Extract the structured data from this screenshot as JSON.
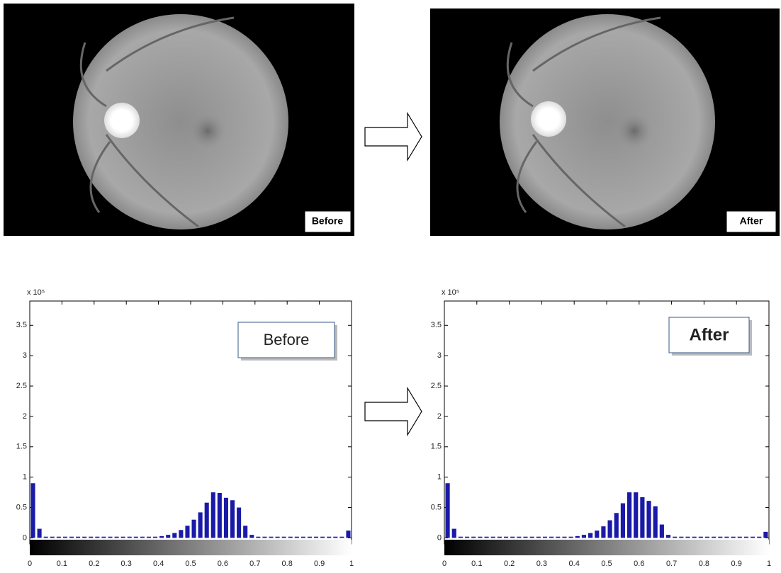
{
  "images": [
    {
      "label": "Before"
    },
    {
      "label": "After"
    }
  ],
  "chart_data": [
    {
      "type": "histogram",
      "annotation": "Before",
      "exponent_label": "x 10⁵",
      "color": "#1a1aa8",
      "bins": [
        0,
        0.02,
        0.04,
        0.06,
        0.08,
        0.1,
        0.12,
        0.14,
        0.16,
        0.18,
        0.2,
        0.22,
        0.24,
        0.26,
        0.28,
        0.3,
        0.32,
        0.34,
        0.36,
        0.38,
        0.4,
        0.42,
        0.44,
        0.46,
        0.48,
        0.5,
        0.52,
        0.54,
        0.56,
        0.58,
        0.6,
        0.62,
        0.64,
        0.66,
        0.68,
        0.7,
        0.72,
        0.74,
        0.76,
        0.78,
        0.8,
        0.82,
        0.84,
        0.86,
        0.88,
        0.9,
        0.92,
        0.94,
        0.96,
        0.98,
        1
      ],
      "values": [
        0.9,
        0.15,
        0.02,
        0.02,
        0.02,
        0.02,
        0.02,
        0.02,
        0.02,
        0.02,
        0.02,
        0.02,
        0.02,
        0.02,
        0.02,
        0.02,
        0.02,
        0.02,
        0.02,
        0.02,
        0.03,
        0.05,
        0.08,
        0.13,
        0.2,
        0.3,
        0.42,
        0.58,
        0.75,
        0.74,
        0.66,
        0.62,
        0.5,
        0.2,
        0.05,
        0.02,
        0.02,
        0.02,
        0.02,
        0.02,
        0.02,
        0.02,
        0.02,
        0.02,
        0.02,
        0.02,
        0.02,
        0.02,
        0.02,
        0.12
      ],
      "xlim": [
        0,
        1
      ],
      "xticks": [
        0,
        0.1,
        0.2,
        0.3,
        0.4,
        0.5,
        0.6,
        0.7,
        0.8,
        0.9,
        1
      ],
      "ylim": [
        -0.1,
        3.9
      ],
      "yticks": [
        0,
        0.5,
        1,
        1.5,
        2,
        2.5,
        3,
        3.5
      ]
    },
    {
      "type": "histogram",
      "annotation": "After",
      "exponent_label": "x 10⁵",
      "color": "#1a1aa8",
      "bins": [
        0,
        0.02,
        0.04,
        0.06,
        0.08,
        0.1,
        0.12,
        0.14,
        0.16,
        0.18,
        0.2,
        0.22,
        0.24,
        0.26,
        0.28,
        0.3,
        0.32,
        0.34,
        0.36,
        0.38,
        0.4,
        0.42,
        0.44,
        0.46,
        0.48,
        0.5,
        0.52,
        0.54,
        0.56,
        0.58,
        0.6,
        0.62,
        0.64,
        0.66,
        0.68,
        0.7,
        0.72,
        0.74,
        0.76,
        0.78,
        0.8,
        0.82,
        0.84,
        0.86,
        0.88,
        0.9,
        0.92,
        0.94,
        0.96,
        0.98,
        1
      ],
      "values": [
        0.9,
        0.15,
        0.02,
        0.02,
        0.02,
        0.02,
        0.02,
        0.02,
        0.02,
        0.02,
        0.02,
        0.02,
        0.02,
        0.02,
        0.02,
        0.02,
        0.02,
        0.02,
        0.02,
        0.02,
        0.03,
        0.05,
        0.08,
        0.12,
        0.19,
        0.29,
        0.41,
        0.57,
        0.75,
        0.75,
        0.67,
        0.61,
        0.52,
        0.22,
        0.05,
        0.02,
        0.02,
        0.02,
        0.02,
        0.02,
        0.02,
        0.02,
        0.02,
        0.02,
        0.02,
        0.02,
        0.02,
        0.02,
        0.02,
        0.1
      ],
      "xlim": [
        0,
        1
      ],
      "xticks": [
        0,
        0.1,
        0.2,
        0.3,
        0.4,
        0.5,
        0.6,
        0.7,
        0.8,
        0.9,
        1
      ],
      "ylim": [
        -0.1,
        3.9
      ],
      "yticks": [
        0,
        0.5,
        1,
        1.5,
        2,
        2.5,
        3,
        3.5
      ]
    }
  ]
}
